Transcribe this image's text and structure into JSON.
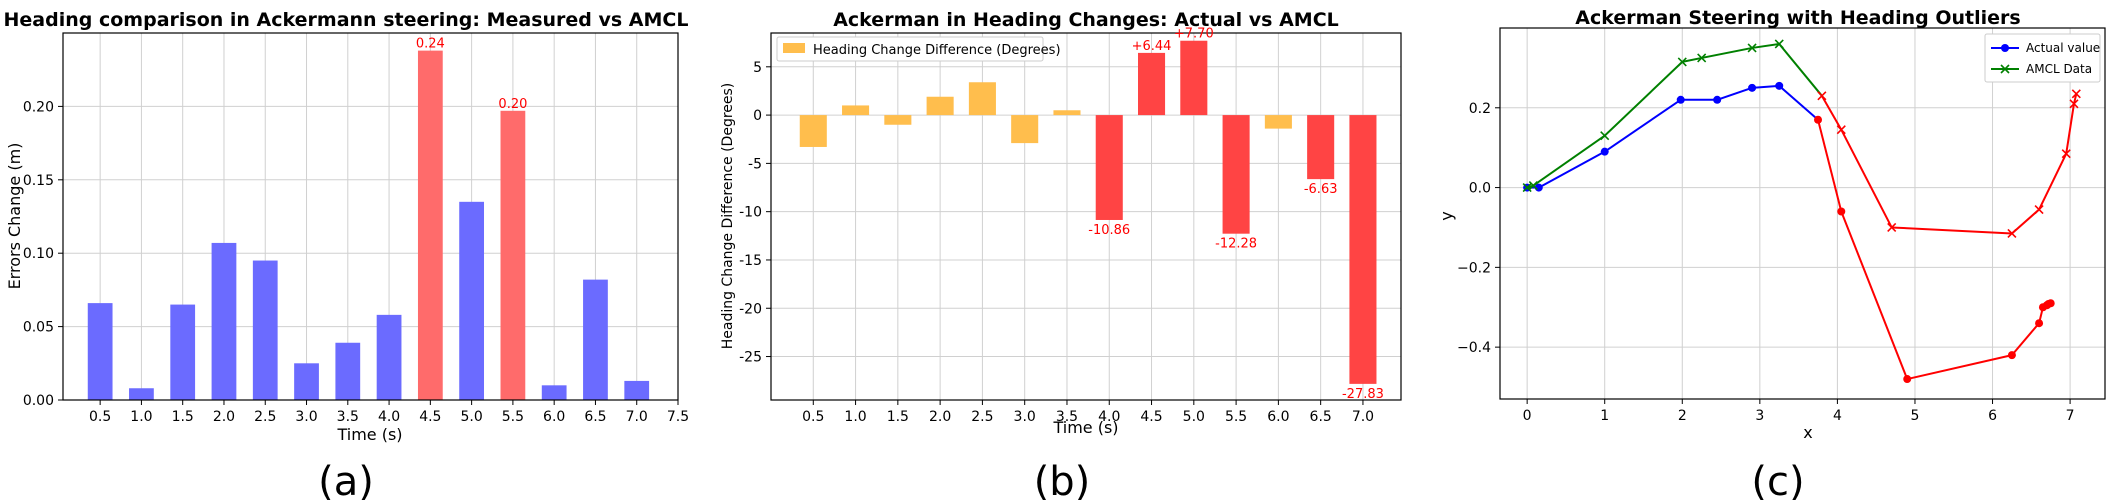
{
  "captions": [
    "(a)",
    "(b)",
    "(c)"
  ],
  "chart_data": [
    {
      "type": "bar",
      "title": "Heading comparison in Ackermann steering: Measured vs AMCL",
      "xlabel": "Time (s)",
      "ylabel": "Errors Change (m)",
      "categories": [
        "0.5",
        "1.0",
        "1.5",
        "2.0",
        "2.5",
        "3.0",
        "3.5",
        "4.0",
        "4.5",
        "5.0",
        "5.5",
        "6.0",
        "6.5",
        "7.0"
      ],
      "x_values": [
        0.5,
        1.0,
        1.5,
        2.0,
        2.5,
        3.0,
        3.5,
        4.0,
        4.5,
        5.0,
        5.5,
        6.0,
        6.5,
        7.0
      ],
      "values": [
        0.066,
        0.008,
        0.065,
        0.107,
        0.095,
        0.025,
        0.039,
        0.058,
        0.238,
        0.135,
        0.197,
        0.01,
        0.082,
        0.013
      ],
      "highlight": [
        false,
        false,
        false,
        false,
        false,
        false,
        false,
        false,
        true,
        false,
        true,
        false,
        false,
        false
      ],
      "data_labels": [
        "",
        "",
        "",
        "",
        "",
        "",
        "",
        "",
        "0.24",
        "",
        "0.20",
        "",
        "",
        ""
      ],
      "xticks": [
        "0.5",
        "1.0",
        "1.5",
        "2.0",
        "2.5",
        "3.0",
        "3.5",
        "4.0",
        "4.5",
        "5.0",
        "5.5",
        "6.0",
        "6.5",
        "7.0",
        "7.5"
      ],
      "xtick_values": [
        0.5,
        1.0,
        1.5,
        2.0,
        2.5,
        3.0,
        3.5,
        4.0,
        4.5,
        5.0,
        5.5,
        6.0,
        6.5,
        7.0,
        7.5
      ],
      "yticks": [
        "0.00",
        "0.05",
        "0.10",
        "0.15",
        "0.20"
      ],
      "ytick_values": [
        0,
        0.05,
        0.1,
        0.15,
        0.2
      ],
      "xlim": [
        0.05,
        7.5
      ],
      "ylim": [
        0,
        0.25
      ],
      "bar_width": 0.3,
      "colors": {
        "normal": "#6b6bff",
        "highlight": "#ff6b6b"
      },
      "grid": true
    },
    {
      "type": "bar",
      "title": "Ackerman in Heading Changes: Actual vs AMCL",
      "xlabel": "Time (s)",
      "ylabel": "Heading Change Difference (Degrees)",
      "legend": [
        "Heading Change Difference (Degrees)"
      ],
      "legend_position": "top-left",
      "categories": [
        "0.5",
        "1.0",
        "1.5",
        "2.0",
        "2.5",
        "3.0",
        "3.5",
        "4.0",
        "4.5",
        "5.0",
        "5.5",
        "6.0",
        "6.5",
        "7.0"
      ],
      "x_values": [
        0.5,
        1.0,
        1.5,
        2.0,
        2.5,
        3.0,
        3.5,
        4.0,
        4.5,
        5.0,
        5.5,
        6.0,
        6.5,
        7.0
      ],
      "values": [
        -3.3,
        1.0,
        -1.0,
        1.9,
        3.4,
        -2.9,
        0.5,
        -10.86,
        6.44,
        7.7,
        -12.28,
        -1.4,
        -6.63,
        -27.83
      ],
      "highlight": [
        false,
        false,
        false,
        false,
        false,
        false,
        false,
        true,
        true,
        true,
        true,
        false,
        true,
        true
      ],
      "data_labels": [
        "",
        "",
        "",
        "",
        "",
        "",
        "",
        "-10.86",
        "+6.44",
        "+7.70",
        "-12.28",
        "",
        "-6.63",
        "-27.83"
      ],
      "xticks": [
        "0.5",
        "1.0",
        "1.5",
        "2.0",
        "2.5",
        "3.0",
        "3.5",
        "4.0",
        "4.5",
        "5.0",
        "5.5",
        "6.0",
        "6.5",
        "7.0"
      ],
      "xtick_values": [
        0.5,
        1.0,
        1.5,
        2.0,
        2.5,
        3.0,
        3.5,
        4.0,
        4.5,
        5.0,
        5.5,
        6.0,
        6.5,
        7.0
      ],
      "yticks": [
        "5",
        "0",
        "-5",
        "-10",
        "-15",
        "-20",
        "-25"
      ],
      "ytick_values": [
        5,
        0,
        -5,
        -10,
        -15,
        -20,
        -25
      ],
      "xlim": [
        0.0,
        7.45
      ],
      "ylim": [
        -29.5,
        8.5
      ],
      "bar_width": 0.32,
      "colors": {
        "normal": "#ffbe4d",
        "highlight": "#ff4444"
      },
      "grid": true
    },
    {
      "type": "line",
      "title": "Ackerman Steering with Heading Outliers",
      "xlabel": "x",
      "ylabel": "y",
      "legend_position": "top-right",
      "series": [
        {
          "name": "Actual value",
          "color": "#0000ff",
          "marker": "circle",
          "x": [
            0.0,
            0.15,
            1.0,
            1.98,
            2.45,
            2.9,
            3.25,
            3.75,
            4.05,
            4.9,
            6.25,
            6.6,
            6.65,
            6.7,
            6.72,
            6.75
          ],
          "y": [
            0.0,
            0.0,
            0.09,
            0.22,
            0.22,
            0.25,
            0.255,
            0.17,
            -0.06,
            -0.48,
            -0.42,
            -0.34,
            -0.3,
            -0.295,
            -0.292,
            -0.29
          ]
        },
        {
          "name": "AMCL Data",
          "color": "#008000",
          "marker": "x",
          "x": [
            0.0,
            0.08,
            1.0,
            2.0,
            2.25,
            2.9,
            3.25,
            3.8,
            4.05,
            4.7,
            6.25,
            6.6,
            6.95,
            7.05,
            7.08
          ],
          "y": [
            0.0,
            0.005,
            0.13,
            0.315,
            0.325,
            0.35,
            0.36,
            0.23,
            0.145,
            -0.1,
            -0.115,
            -0.055,
            0.085,
            0.21,
            0.235
          ]
        }
      ],
      "outlier_color": "#ff0000",
      "outlier_start_x": 3.5,
      "xticks": [
        "0",
        "1",
        "2",
        "3",
        "4",
        "5",
        "6",
        "7"
      ],
      "xtick_values": [
        0,
        1,
        2,
        3,
        4,
        5,
        6,
        7
      ],
      "yticks": [
        "0.2",
        "0.0",
        "−0.2",
        "−0.4"
      ],
      "ytick_values": [
        0.2,
        0.0,
        -0.2,
        -0.4
      ],
      "xlim": [
        -0.35,
        7.45
      ],
      "ylim": [
        -0.53,
        0.4
      ],
      "grid": true
    }
  ]
}
